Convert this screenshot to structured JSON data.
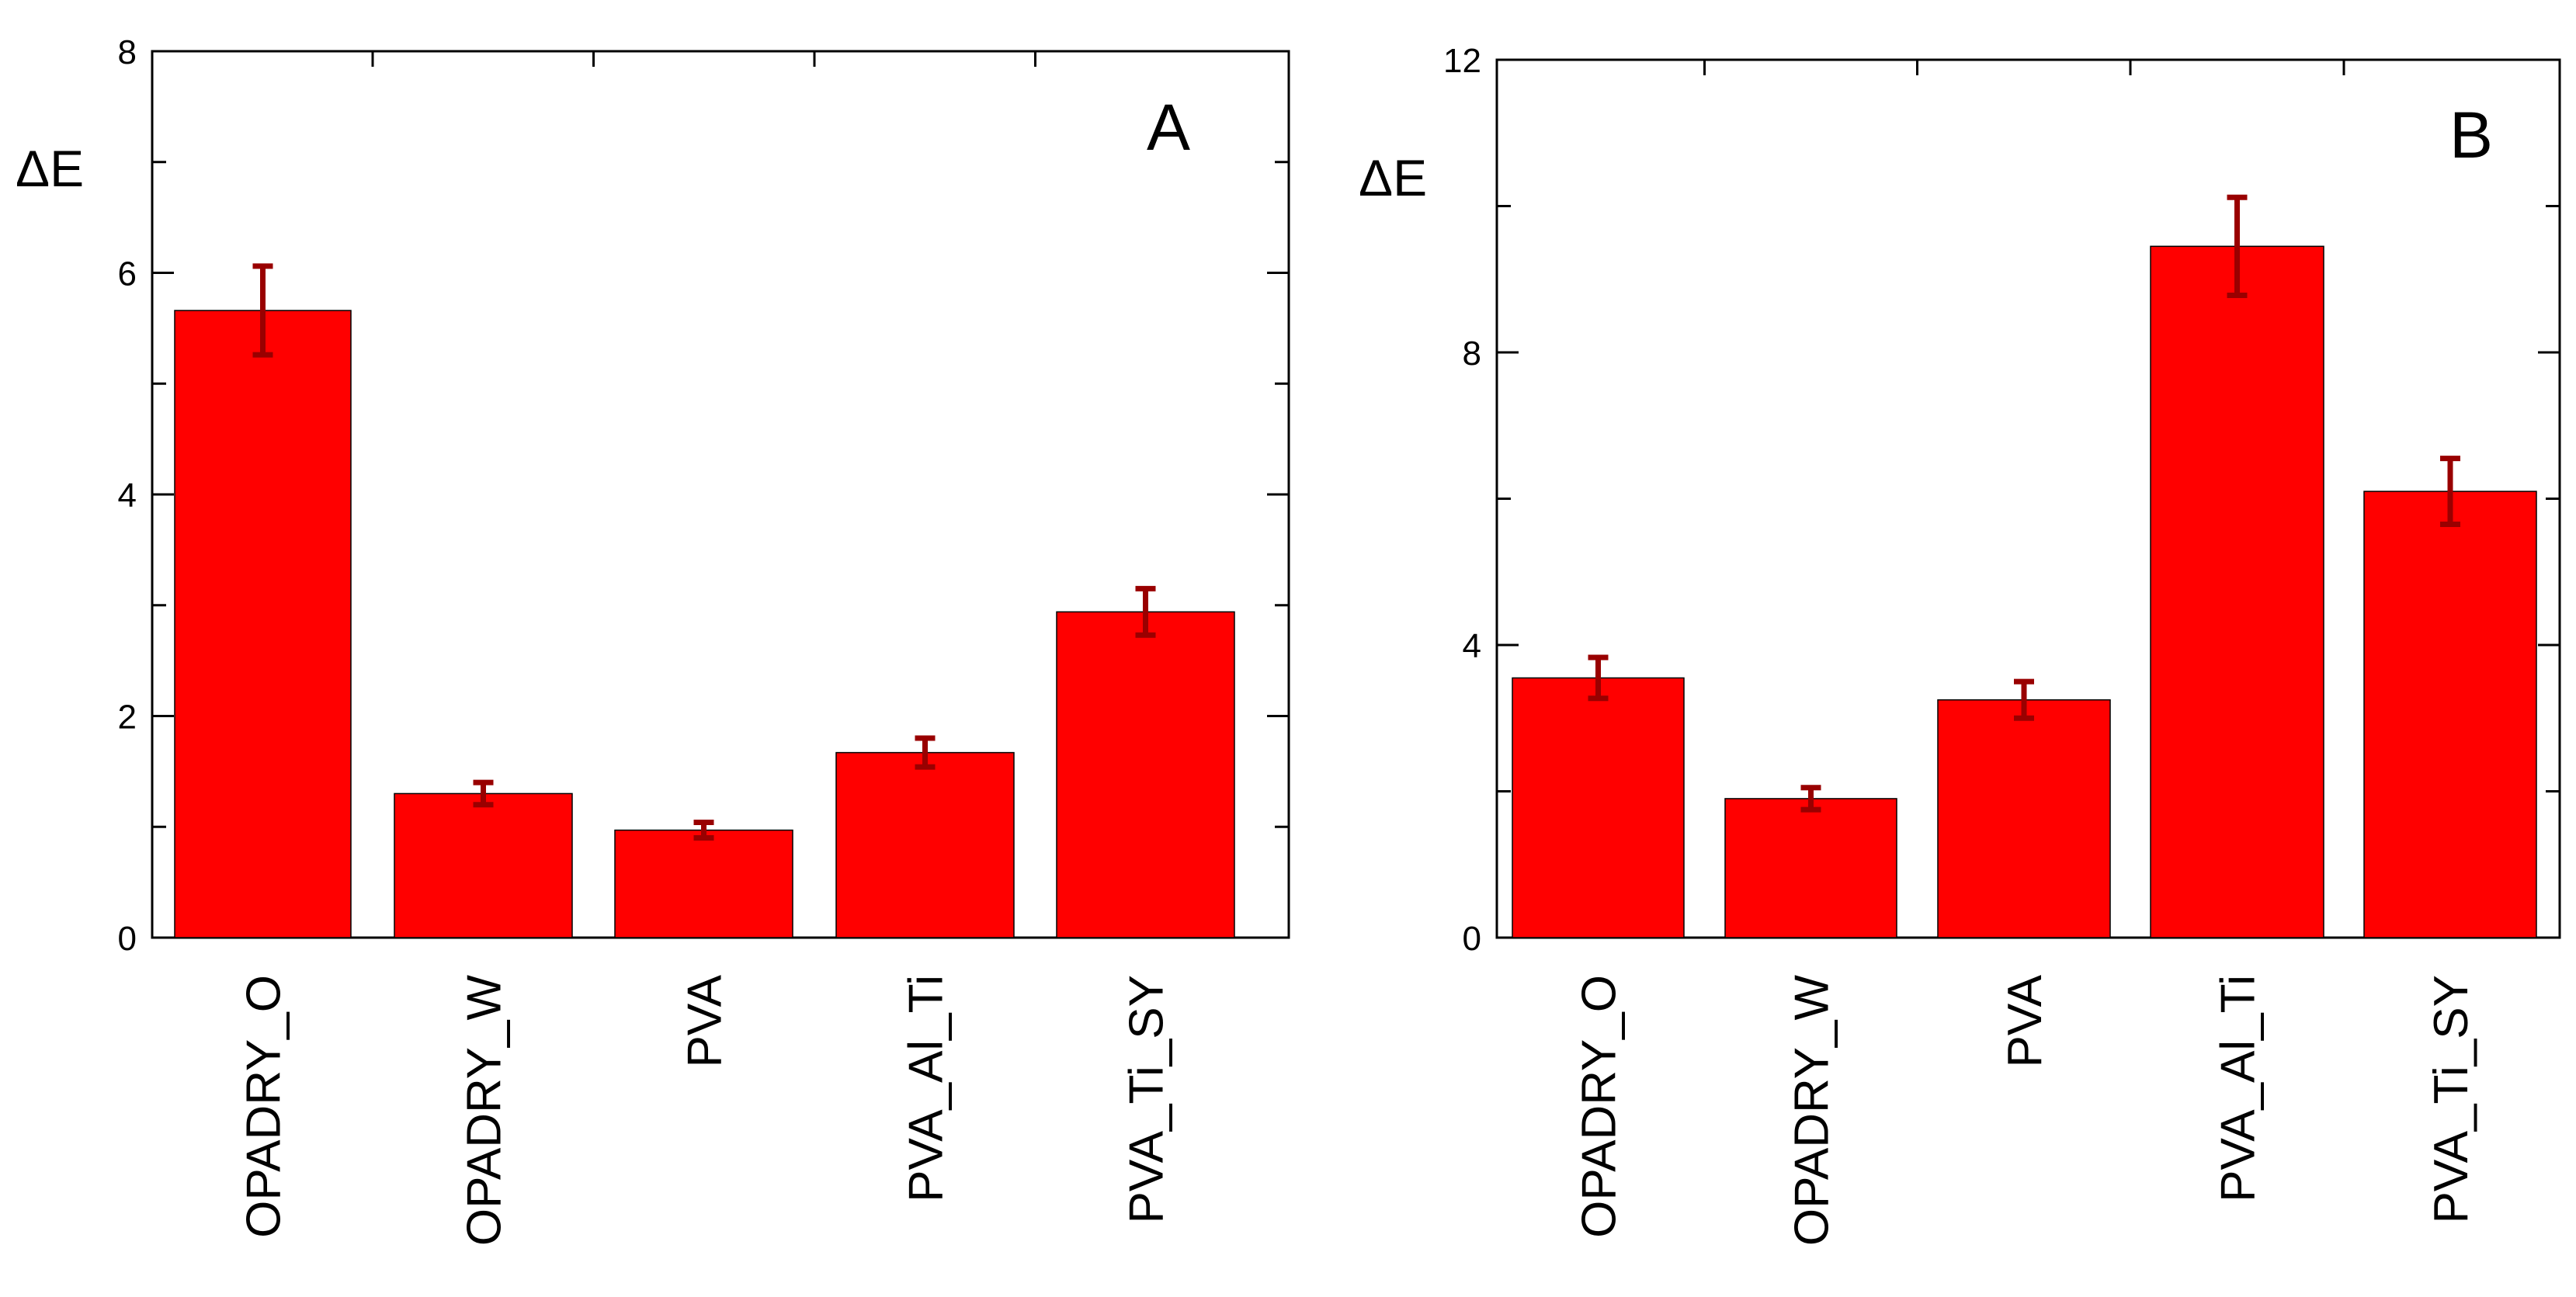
{
  "chart_data": [
    {
      "type": "bar",
      "panel_label": "A",
      "ylabel": "ΔE",
      "xlabel": "",
      "categories": [
        "OPADRY_O",
        "OPADRY_W",
        "PVA",
        "PVA_Al_Ti",
        "PVA_Ti_SY"
      ],
      "values": [
        5.66,
        1.3,
        0.97,
        1.67,
        2.94
      ],
      "errors": [
        0.4,
        0.1,
        0.07,
        0.13,
        0.21
      ],
      "ylim": [
        0,
        8
      ],
      "yticks": [
        0,
        2,
        4,
        6,
        8
      ],
      "ytick_labels": [
        "0",
        "2",
        "4",
        "6",
        "8"
      ],
      "grid": false,
      "colors": {
        "bar": "#ff0000",
        "error": "#990000"
      }
    },
    {
      "type": "bar",
      "panel_label": "B",
      "ylabel": "ΔE",
      "xlabel": "",
      "categories": [
        "OPADRY_O",
        "OPADRY_W",
        "PVA",
        "PVA_Al_Ti",
        "PVA_Ti_SY"
      ],
      "values": [
        3.55,
        1.9,
        3.25,
        9.45,
        6.1
      ],
      "errors": [
        0.28,
        0.15,
        0.25,
        0.67,
        0.45
      ],
      "ylim": [
        0,
        12
      ],
      "yticks": [
        0,
        4,
        8,
        12
      ],
      "ytick_labels": [
        "0",
        "4",
        "8",
        "12"
      ],
      "grid": false,
      "colors": {
        "bar": "#ff0000",
        "error": "#990000"
      }
    }
  ]
}
